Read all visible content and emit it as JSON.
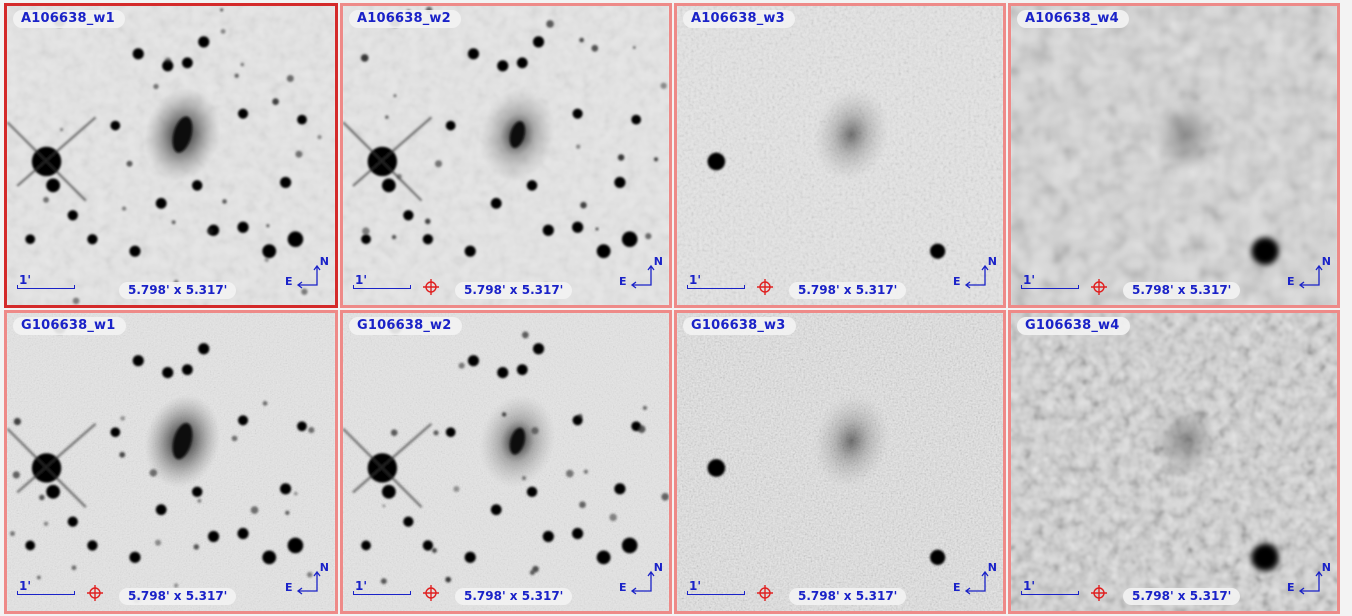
{
  "tiles": [
    {
      "title": "A106638_w1",
      "scale": "1'",
      "size": "5.798' x 5.317'",
      "selected": true,
      "target": false,
      "band": "w1",
      "row": "A"
    },
    {
      "title": "A106638_w2",
      "scale": "1'",
      "size": "5.798' x 5.317'",
      "selected": false,
      "target": true,
      "band": "w2",
      "row": "A"
    },
    {
      "title": "A106638_w3",
      "scale": "1'",
      "size": "5.798' x 5.317'",
      "selected": false,
      "target": true,
      "band": "w3",
      "row": "A"
    },
    {
      "title": "A106638_w4",
      "scale": "1'",
      "size": "5.798' x 5.317'",
      "selected": false,
      "target": true,
      "band": "w4",
      "row": "A"
    },
    {
      "title": "G106638_w1",
      "scale": "1'",
      "size": "5.798' x 5.317'",
      "selected": false,
      "target": true,
      "band": "w1",
      "row": "G"
    },
    {
      "title": "G106638_w2",
      "scale": "1'",
      "size": "5.798' x 5.317'",
      "selected": false,
      "target": true,
      "band": "w2",
      "row": "G"
    },
    {
      "title": "G106638_w3",
      "scale": "1'",
      "size": "5.798' x 5.317'",
      "selected": false,
      "target": true,
      "band": "w3",
      "row": "G"
    },
    {
      "title": "G106638_w4",
      "scale": "1'",
      "size": "5.798' x 5.317'",
      "selected": false,
      "target": true,
      "band": "w4",
      "row": "G"
    }
  ],
  "compass": {
    "north": "N",
    "east": "E"
  },
  "colors": {
    "label_blue": "#1a22c8",
    "border": "#ee8a88",
    "border_selected": "#d42a2a",
    "target_red": "#e02020"
  }
}
